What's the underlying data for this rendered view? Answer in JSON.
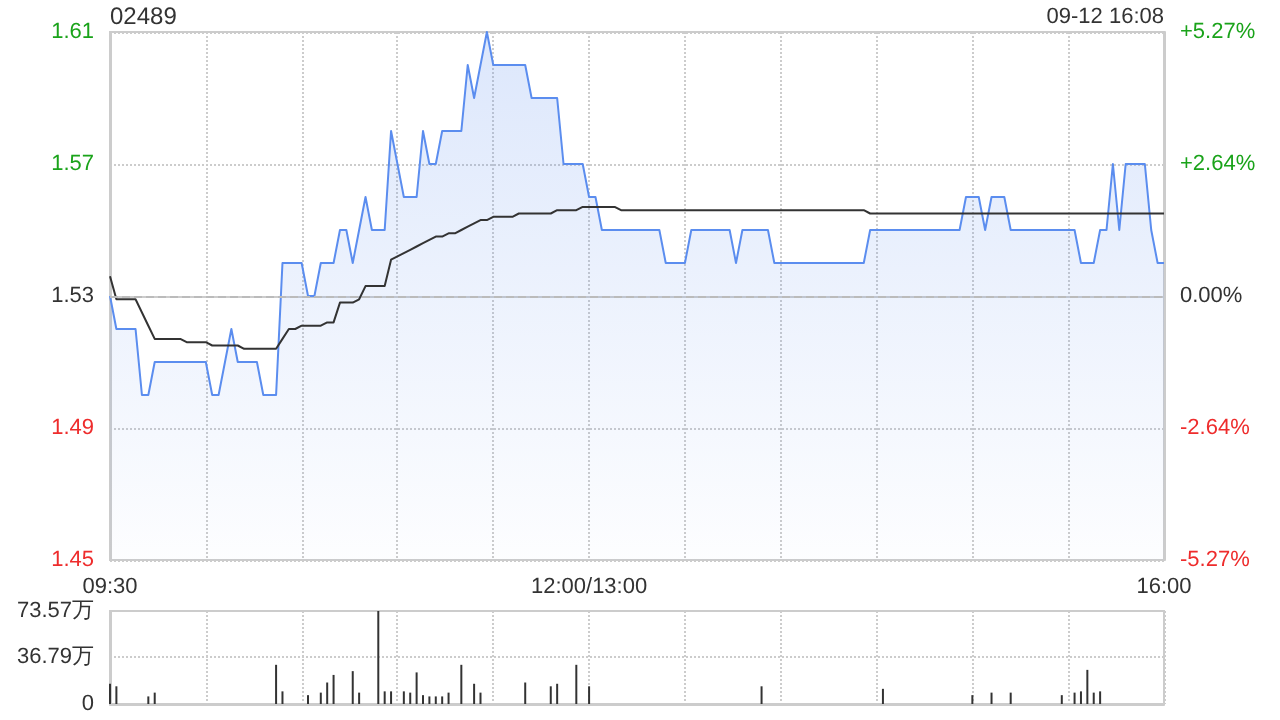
{
  "chart_data": [
    {
      "type": "line",
      "title": "02489",
      "annotations": [
        "09-12 16:08"
      ],
      "categories": [
        "09:30",
        null,
        null,
        null,
        null,
        null,
        null,
        null,
        null,
        null,
        null,
        null,
        null,
        null,
        null,
        null,
        null,
        null,
        null,
        null,
        null,
        null,
        null,
        null,
        null,
        null,
        null,
        null,
        null,
        null,
        null,
        null,
        null,
        null,
        null,
        null,
        null,
        null,
        null,
        null,
        null,
        null,
        null,
        null,
        null,
        null,
        null,
        null,
        null,
        null,
        null,
        null,
        null,
        null,
        null,
        null,
        null,
        null,
        null,
        null,
        null,
        null,
        null,
        null,
        null,
        null,
        null,
        null,
        null,
        null,
        null,
        null,
        null,
        null,
        null,
        "12:00/13:00",
        null,
        null,
        null,
        null,
        null,
        null,
        null,
        null,
        null,
        null,
        null,
        null,
        null,
        null,
        null,
        null,
        null,
        null,
        null,
        null,
        null,
        null,
        null,
        null,
        null,
        null,
        null,
        null,
        null,
        null,
        null,
        null,
        null,
        null,
        null,
        null,
        null,
        null,
        null,
        null,
        null,
        null,
        null,
        null,
        null,
        null,
        null,
        null,
        null,
        null,
        null,
        null,
        null,
        null,
        null,
        null,
        null,
        null,
        null,
        null,
        null,
        null,
        null,
        null,
        null,
        null,
        null,
        null,
        null,
        null,
        null,
        null,
        null,
        null,
        null,
        null,
        null,
        null,
        null,
        null,
        null,
        null,
        null,
        null,
        null,
        null,
        null,
        null,
        null,
        "16:00"
      ],
      "ylim": [
        1.45,
        1.61
      ],
      "yticks": [
        1.45,
        1.49,
        1.53,
        1.57,
        1.61
      ],
      "y2lim": [
        -5.27,
        5.27
      ],
      "y2ticks": [
        {
          "value": -5.27,
          "label": "-5.27%"
        },
        {
          "value": -2.64,
          "label": "-2.64%"
        },
        {
          "value": 0,
          "label": "0.00%"
        },
        {
          "value": 2.64,
          "label": "+2.64%"
        },
        {
          "value": 5.27,
          "label": "+5.27%"
        }
      ],
      "grid": true,
      "marker": "none",
      "line_style": "solid",
      "ref_lines": [
        {
          "axis": "y",
          "value": 1.53,
          "line_style": "dashed",
          "color": "#bbbbbb"
        }
      ],
      "series": [
        {
          "type": "area",
          "color": "#5b8def",
          "values": [
            1.53,
            1.52,
            1.52,
            1.52,
            1.52,
            1.5,
            1.5,
            1.51,
            1.51,
            1.51,
            1.51,
            1.51,
            1.51,
            1.51,
            1.51,
            1.51,
            1.5,
            1.5,
            1.51,
            1.52,
            1.51,
            1.51,
            1.51,
            1.51,
            1.5,
            1.5,
            1.5,
            1.54,
            1.54,
            1.54,
            1.54,
            1.53,
            1.53,
            1.54,
            1.54,
            1.54,
            1.55,
            1.55,
            1.54,
            1.55,
            1.56,
            1.55,
            1.55,
            1.55,
            1.58,
            1.57,
            1.56,
            1.56,
            1.56,
            1.58,
            1.57,
            1.57,
            1.58,
            1.58,
            1.58,
            1.58,
            1.6,
            1.59,
            1.6,
            1.61,
            1.6,
            1.6,
            1.6,
            1.6,
            1.6,
            1.6,
            1.59,
            1.59,
            1.59,
            1.59,
            1.59,
            1.57,
            1.57,
            1.57,
            1.57,
            1.56,
            1.56,
            1.55,
            1.55,
            1.55,
            1.55,
            1.55,
            1.55,
            1.55,
            1.55,
            1.55,
            1.55,
            1.54,
            1.54,
            1.54,
            1.54,
            1.55,
            1.55,
            1.55,
            1.55,
            1.55,
            1.55,
            1.55,
            1.54,
            1.55,
            1.55,
            1.55,
            1.55,
            1.55,
            1.54,
            1.54,
            1.54,
            1.54,
            1.54,
            1.54,
            1.54,
            1.54,
            1.54,
            1.54,
            1.54,
            1.54,
            1.54,
            1.54,
            1.54,
            1.55,
            1.55,
            1.55,
            1.55,
            1.55,
            1.55,
            1.55,
            1.55,
            1.55,
            1.55,
            1.55,
            1.55,
            1.55,
            1.55,
            1.55,
            1.56,
            1.56,
            1.56,
            1.55,
            1.56,
            1.56,
            1.56,
            1.55,
            1.55,
            1.55,
            1.55,
            1.55,
            1.55,
            1.55,
            1.55,
            1.55,
            1.55,
            1.55,
            1.54,
            1.54,
            1.54,
            1.55,
            1.55,
            1.57,
            1.55,
            1.57,
            1.57,
            1.57,
            1.57,
            1.55,
            1.54,
            1.54
          ]
        },
        {
          "color": "#333333",
          "values": [
            1.536,
            1.529,
            1.529,
            1.529,
            1.529,
            1.525,
            1.521,
            1.517,
            1.517,
            1.517,
            1.517,
            1.517,
            1.516,
            1.516,
            1.516,
            1.516,
            1.515,
            1.515,
            1.515,
            1.515,
            1.515,
            1.514,
            1.514,
            1.514,
            1.514,
            1.514,
            1.514,
            1.517,
            1.52,
            1.52,
            1.521,
            1.521,
            1.521,
            1.521,
            1.522,
            1.522,
            1.528,
            1.528,
            1.528,
            1.529,
            1.533,
            1.533,
            1.533,
            1.533,
            1.541,
            1.542,
            1.543,
            1.544,
            1.545,
            1.546,
            1.547,
            1.548,
            1.548,
            1.549,
            1.549,
            1.55,
            1.551,
            1.552,
            1.553,
            1.553,
            1.554,
            1.554,
            1.554,
            1.554,
            1.555,
            1.555,
            1.555,
            1.555,
            1.555,
            1.555,
            1.556,
            1.556,
            1.556,
            1.556,
            1.557,
            1.557,
            1.557,
            1.557,
            1.557,
            1.557,
            1.556,
            1.556,
            1.556,
            1.556,
            1.556,
            1.556,
            1.556,
            1.556,
            1.556,
            1.556,
            1.556,
            1.556,
            1.556,
            1.556,
            1.556,
            1.556,
            1.556,
            1.556,
            1.556,
            1.556,
            1.556,
            1.556,
            1.556,
            1.556,
            1.556,
            1.556,
            1.556,
            1.556,
            1.556,
            1.556,
            1.556,
            1.556,
            1.556,
            1.556,
            1.556,
            1.556,
            1.556,
            1.556,
            1.556,
            1.555,
            1.555,
            1.555,
            1.555,
            1.555,
            1.555,
            1.555,
            1.555,
            1.555,
            1.555,
            1.555,
            1.555,
            1.555,
            1.555,
            1.555,
            1.555,
            1.555,
            1.555,
            1.555,
            1.555,
            1.555,
            1.555,
            1.555,
            1.555,
            1.555,
            1.555,
            1.555,
            1.555,
            1.555,
            1.555,
            1.555,
            1.555,
            1.555,
            1.555,
            1.555,
            1.555,
            1.555,
            1.555,
            1.555,
            1.555,
            1.555,
            1.555,
            1.555,
            1.555,
            1.555,
            1.555,
            1.555
          ]
        }
      ]
    },
    {
      "type": "bar",
      "tick_labels": "y",
      "grid": true,
      "categories": [
        null,
        null,
        null,
        null,
        null,
        null,
        null,
        null,
        null,
        null,
        null,
        null,
        null,
        null,
        null,
        null,
        null,
        null,
        null,
        null,
        null,
        null,
        null,
        null,
        null,
        null,
        null,
        null,
        null,
        null,
        null,
        null,
        null,
        null,
        null,
        null,
        null,
        null,
        null,
        null,
        null,
        null,
        null,
        null,
        null,
        null,
        null,
        null,
        null,
        null,
        null,
        null,
        null,
        null,
        null,
        null,
        null,
        null,
        null,
        null,
        null,
        null,
        null,
        null,
        null,
        null,
        null,
        null,
        null,
        null,
        null,
        null,
        null,
        null,
        null,
        null,
        null,
        null,
        null,
        null,
        null,
        null,
        null,
        null,
        null,
        null,
        null,
        null,
        null,
        null,
        null,
        null,
        null,
        null,
        null,
        null,
        null,
        null,
        null,
        null,
        null,
        null,
        null,
        null,
        null,
        null,
        null,
        null,
        null,
        null,
        null,
        null,
        null,
        null,
        null,
        null,
        null,
        null,
        null,
        null,
        null,
        null,
        null,
        null,
        null,
        null,
        null,
        null,
        null,
        null,
        null,
        null,
        null,
        null,
        null,
        null,
        null,
        null,
        null,
        null,
        null,
        null,
        null,
        null,
        null,
        null,
        null,
        null,
        null,
        null,
        null,
        null,
        null,
        null,
        null,
        null,
        null,
        null,
        null,
        null,
        null,
        null,
        null,
        null,
        null,
        null
      ],
      "ylim": [
        0,
        73.57
      ],
      "yticks": [
        0,
        {
          "value": 36.79,
          "label": "36.79万"
        },
        {
          "value": 73.57,
          "label": "73.57万"
        }
      ],
      "series": [
        {
          "color": "#333333",
          "values": [
            16,
            14,
            0,
            0,
            0,
            0,
            6,
            9,
            0,
            0,
            0,
            0,
            0,
            0,
            0,
            0,
            0,
            0,
            0,
            0,
            0,
            0,
            0,
            0,
            0,
            0,
            31,
            10,
            0,
            0,
            0,
            7,
            0,
            9,
            17,
            23,
            0,
            0,
            26,
            9,
            0,
            0,
            73.57,
            10,
            10,
            0,
            10,
            9,
            25,
            7,
            6,
            6,
            6,
            9,
            0,
            31,
            0,
            16,
            9,
            0,
            0,
            0,
            0,
            0,
            0,
            17,
            0,
            0,
            0,
            14,
            16,
            0,
            0,
            31,
            0,
            14,
            0,
            0,
            0,
            0,
            0,
            0,
            0,
            0,
            0,
            0,
            0,
            0,
            0,
            0,
            0,
            0,
            0,
            0,
            0,
            0,
            0,
            0,
            0,
            0,
            0,
            0,
            14,
            0,
            0,
            0,
            0,
            0,
            0,
            0,
            0,
            0,
            0,
            0,
            0,
            0,
            0,
            0,
            0,
            0,
            0,
            12,
            0,
            0,
            0,
            0,
            0,
            0,
            0,
            0,
            0,
            0,
            0,
            0,
            0,
            7,
            0,
            0,
            9,
            0,
            0,
            9,
            0,
            0,
            0,
            0,
            0,
            0,
            0,
            7,
            0,
            9,
            10,
            27,
            9,
            10,
            0,
            0,
            0,
            0,
            0,
            0,
            0,
            0,
            0,
            0
          ]
        }
      ]
    }
  ]
}
